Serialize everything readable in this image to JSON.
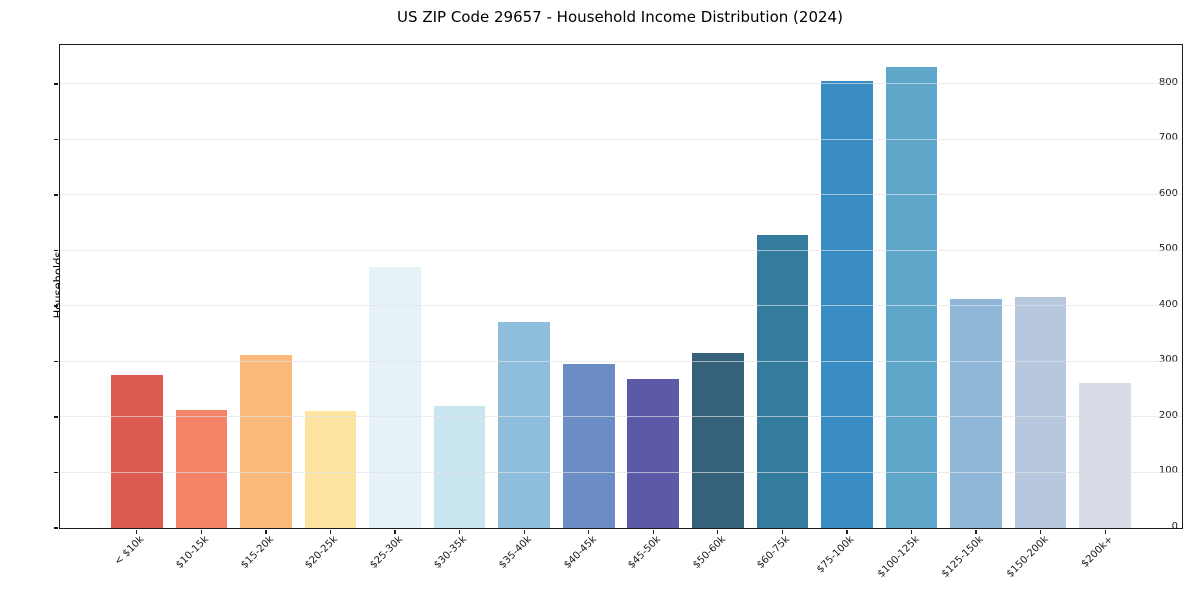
{
  "figure": {
    "title": "US ZIP Code 29657 - Household Income Distribution (2024)",
    "ylabel": "Households"
  },
  "chart_data": {
    "type": "bar",
    "title": "US ZIP Code 29657 - Household Income Distribution (2024)",
    "xlabel": "",
    "ylabel": "Households",
    "categories": [
      "< $10k",
      "$10-15k",
      "$15-20k",
      "$20-25k",
      "$25-30k",
      "$30-35k",
      "$35-40k",
      "$40-45k",
      "$45-50k",
      "$50-60k",
      "$60-75k",
      "$75-100k",
      "$100-125k",
      "$125-150k",
      "$150-200k",
      "$200k+"
    ],
    "values": [
      276,
      213,
      312,
      210,
      470,
      220,
      371,
      296,
      268,
      315,
      528,
      805,
      830,
      413,
      416,
      261
    ],
    "bar_colors": [
      "#dc5a52",
      "#f38467",
      "#fbba7b",
      "#fce3a0",
      "#e6f2f8",
      "#c9e5ef",
      "#8fbedd",
      "#6b8cc4",
      "#5c5aa7",
      "#35617a",
      "#347c9e",
      "#3a8dc2",
      "#5fa6cb",
      "#90b7d7",
      "#b7c7de",
      "#d9dbe7"
    ],
    "yticks": [
      0,
      100,
      200,
      300,
      400,
      500,
      600,
      700,
      800
    ],
    "ylim": [
      0,
      870
    ],
    "grid": "horizontal",
    "legend": "none",
    "background": "#ffffff",
    "spine_color": "#1a1a1a"
  }
}
